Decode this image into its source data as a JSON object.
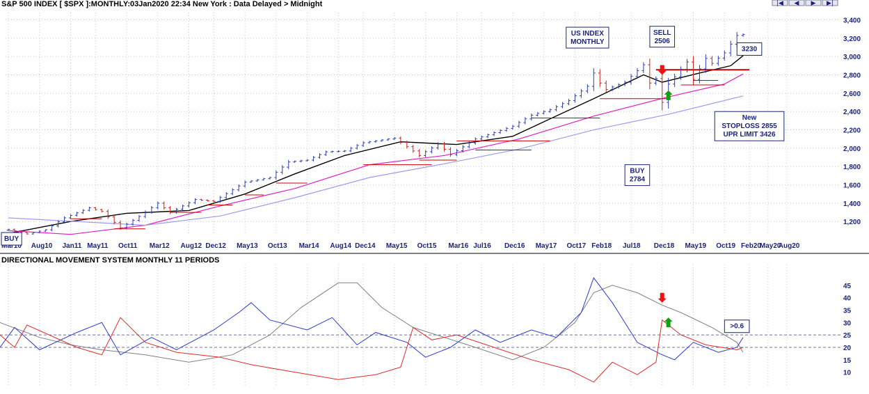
{
  "header": {
    "title": "S&P 500 INDEX [ $SPX ]:MONTHLY:03Jan2020 22:34 New York : Data Delayed > Midnight",
    "nav_buttons": [
      {
        "icon": "first-icon",
        "glyph": "|◀"
      },
      {
        "icon": "prev-icon",
        "glyph": "◀"
      },
      {
        "icon": "next-icon",
        "glyph": "▶"
      },
      {
        "icon": "last-icon",
        "glyph": "▶|"
      }
    ]
  },
  "colors": {
    "up_bar": "#2f3db4",
    "down_bar": "#d32020",
    "ma_short": "#000000",
    "ma_mid": "#e020c0",
    "ma_long": "#9a9af0",
    "level_line": "#cc0000",
    "adx": "#808080",
    "plus_di": "#2a3bd0",
    "minus_di": "#e02a2a",
    "grid": "#c8c8c8",
    "arrow_down": "#ee1111",
    "arrow_up": "#10a010"
  },
  "chart_data": [
    {
      "type": "ohlc",
      "title": "S&P 500 INDEX [ $SPX ]:MONTHLY:03Jan2020 22:34 New York : Data Delayed > Midnight",
      "y_ticks": [
        "1,200",
        "1,400",
        "1,600",
        "1,800",
        "2,000",
        "2,200",
        "2,400",
        "2,600",
        "2,800",
        "3,000",
        "3,200",
        "3,400"
      ],
      "ylim": [
        1050,
        3480
      ],
      "x_ticks": [
        "Mar10",
        "Aug10",
        "Jan11",
        "May11",
        "Oct11",
        "Mar12",
        "Aug12",
        "Dec12",
        "May13",
        "Oct13",
        "Mar14",
        "Aug14",
        "Dec14",
        "May15",
        "Oct15",
        "Mar16",
        "Jul16",
        "Dec16",
        "May17",
        "Oct17",
        "Feb18",
        "Jul18",
        "Dec18",
        "May19",
        "Oct19",
        "Feb20",
        "May20",
        "Aug20"
      ],
      "close_points": [
        [
          "2010-03",
          1115
        ],
        [
          "2010-06",
          1065
        ],
        [
          "2010-09",
          1110
        ],
        [
          "2010-12",
          1240
        ],
        [
          "2011-04",
          1350
        ],
        [
          "2011-06",
          1310
        ],
        [
          "2011-09",
          1130
        ],
        [
          "2011-12",
          1255
        ],
        [
          "2012-03",
          1400
        ],
        [
          "2012-05",
          1300
        ],
        [
          "2012-09",
          1440
        ],
        [
          "2012-12",
          1420
        ],
        [
          "2013-05",
          1630
        ],
        [
          "2013-09",
          1680
        ],
        [
          "2013-12",
          1850
        ],
        [
          "2014-03",
          1870
        ],
        [
          "2014-06",
          1960
        ],
        [
          "2014-09",
          1970
        ],
        [
          "2014-12",
          2060
        ],
        [
          "2015-05",
          2110
        ],
        [
          "2015-08",
          1970
        ],
        [
          "2015-09",
          1920
        ],
        [
          "2015-12",
          2045
        ],
        [
          "2016-02",
          1930
        ],
        [
          "2016-06",
          2100
        ],
        [
          "2016-09",
          2170
        ],
        [
          "2016-12",
          2240
        ],
        [
          "2017-03",
          2360
        ],
        [
          "2017-06",
          2420
        ],
        [
          "2017-09",
          2520
        ],
        [
          "2017-12",
          2675
        ],
        [
          "2018-01",
          2820
        ],
        [
          "2018-02",
          2710
        ],
        [
          "2018-03",
          2640
        ],
        [
          "2018-06",
          2720
        ],
        [
          "2018-09",
          2910
        ],
        [
          "2018-10",
          2710
        ],
        [
          "2018-11",
          2760
        ],
        [
          "2018-12",
          2500
        ],
        [
          "2019-01",
          2700
        ],
        [
          "2019-04",
          2940
        ],
        [
          "2019-05",
          2750
        ],
        [
          "2019-07",
          2980
        ],
        [
          "2019-08",
          2925
        ],
        [
          "2019-10",
          3040
        ],
        [
          "2019-12",
          3230
        ],
        [
          "2020-01",
          3240
        ]
      ],
      "moving_averages": [
        {
          "name": "short",
          "points": [
            [
              "2010-03",
              1070
            ],
            [
              "2011-01",
              1200
            ],
            [
              "2011-10",
              1290
            ],
            [
              "2012-08",
              1320
            ],
            [
              "2013-05",
              1500
            ],
            [
              "2014-01",
              1720
            ],
            [
              "2014-09",
              1920
            ],
            [
              "2015-06",
              2070
            ],
            [
              "2016-03",
              2040
            ],
            [
              "2016-12",
              2130
            ],
            [
              "2017-06",
              2320
            ],
            [
              "2018-01",
              2540
            ],
            [
              "2018-09",
              2800
            ],
            [
              "2018-12",
              2720
            ],
            [
              "2019-06",
              2820
            ],
            [
              "2019-11",
              2900
            ],
            [
              "2020-01",
              3010
            ]
          ]
        },
        {
          "name": "mid",
          "points": [
            [
              "2010-03",
              1100
            ],
            [
              "2011-01",
              1060
            ],
            [
              "2012-01",
              1160
            ],
            [
              "2013-01",
              1370
            ],
            [
              "2014-01",
              1560
            ],
            [
              "2015-01",
              1820
            ],
            [
              "2016-01",
              1920
            ],
            [
              "2017-01",
              2100
            ],
            [
              "2018-01",
              2350
            ],
            [
              "2019-01",
              2560
            ],
            [
              "2019-10",
              2700
            ],
            [
              "2020-01",
              2810
            ]
          ]
        },
        {
          "name": "long",
          "points": [
            [
              "2010-03",
              1240
            ],
            [
              "2012-01",
              1160
            ],
            [
              "2013-01",
              1260
            ],
            [
              "2014-01",
              1460
            ],
            [
              "2015-01",
              1680
            ],
            [
              "2016-01",
              1830
            ],
            [
              "2017-01",
              1990
            ],
            [
              "2018-01",
              2200
            ],
            [
              "2019-01",
              2370
            ],
            [
              "2020-01",
              2570
            ]
          ]
        }
      ],
      "level_lines": [
        {
          "from": "2018-11",
          "to": "2020-02",
          "y": 2855,
          "weight": 2
        },
        {
          "from": "2018-02",
          "to": "2019-01",
          "y": 2540,
          "weight": 1
        },
        {
          "from": "2019-03",
          "to": "2019-10",
          "y": 2690,
          "weight": 1
        },
        {
          "from": "2019-05",
          "to": "2019-09",
          "y": 2740,
          "weight": 1
        },
        {
          "from": "2017-03",
          "to": "2018-02",
          "y": 2330,
          "weight": 1
        },
        {
          "from": "2016-03",
          "to": "2017-06",
          "y": 2080,
          "weight": 1
        },
        {
          "from": "2016-06",
          "to": "2017-03",
          "y": 1980,
          "weight": 1
        },
        {
          "from": "2014-12",
          "to": "2015-11",
          "y": 1820,
          "weight": 1
        },
        {
          "from": "2015-09",
          "to": "2016-03",
          "y": 1870,
          "weight": 1
        },
        {
          "from": "2013-10",
          "to": "2014-03",
          "y": 1620,
          "weight": 1
        },
        {
          "from": "2013-05",
          "to": "2013-08",
          "y": 1490,
          "weight": 1
        },
        {
          "from": "2011-08",
          "to": "2012-01",
          "y": 1120,
          "weight": 1
        },
        {
          "from": "2012-05",
          "to": "2012-10",
          "y": 1300,
          "weight": 1
        },
        {
          "from": "2012-11",
          "to": "2013-03",
          "y": 1380,
          "weight": 1
        },
        {
          "from": "2011-01",
          "to": "2011-06",
          "y": 1230,
          "weight": 1
        }
      ],
      "annotations": [
        {
          "lines": [
            "US INDEX",
            "MONTHLY"
          ],
          "at": "2017-12",
          "y": 3320
        },
        {
          "lines": [
            "SELL",
            "2506"
          ],
          "at": "2018-12",
          "y": 3330
        },
        {
          "lines": [
            "BUY",
            "2784"
          ],
          "at": "2018-08",
          "y": 1820
        },
        {
          "lines": [
            "3230"
          ],
          "at": "2020-02",
          "y": 3150
        },
        {
          "lines": [
            "New",
            "STOPLOSS 2855",
            "UPR LIMIT 3426"
          ],
          "at": "2020-02",
          "y": 2400
        },
        {
          "lines": [
            "BUY"
          ],
          "at": "2010-03",
          "y": 1080
        }
      ],
      "arrows": [
        {
          "direction": "down",
          "at": "2018-12",
          "y": 2800
        },
        {
          "direction": "up",
          "at": "2019-01",
          "y": 2630
        }
      ]
    },
    {
      "type": "line",
      "title": "DIRECTIONAL MOVEMENT SYSTEM MONTHLY 11 PERIODS",
      "y_ticks": [
        "10",
        "15",
        "20",
        "25",
        "30",
        "35",
        "40",
        "45"
      ],
      "ylim": [
        4,
        50
      ],
      "reference_lines": [
        20,
        25
      ],
      "series": [
        {
          "name": "ADX",
          "points": [
            [
              "2010-01",
              30
            ],
            [
              "2010-08",
              24
            ],
            [
              "2011-01",
              21
            ],
            [
              "2011-06",
              19
            ],
            [
              "2012-01",
              17
            ],
            [
              "2012-08",
              14
            ],
            [
              "2013-03",
              17
            ],
            [
              "2013-09",
              25
            ],
            [
              "2014-02",
              36
            ],
            [
              "2014-08",
              46
            ],
            [
              "2014-11",
              46
            ],
            [
              "2015-03",
              36
            ],
            [
              "2015-08",
              28
            ],
            [
              "2016-01",
              24
            ],
            [
              "2016-06",
              20
            ],
            [
              "2016-12",
              15
            ],
            [
              "2017-05",
              20
            ],
            [
              "2017-10",
              30
            ],
            [
              "2018-01",
              42
            ],
            [
              "2018-04",
              45
            ],
            [
              "2018-08",
              42
            ],
            [
              "2018-12",
              37
            ],
            [
              "2019-03",
              34
            ],
            [
              "2019-08",
              28
            ],
            [
              "2019-12",
              22
            ],
            [
              "2020-01",
              18
            ]
          ]
        },
        {
          "name": "+DI",
          "points": [
            [
              "2010-01",
              20
            ],
            [
              "2010-04",
              28
            ],
            [
              "2010-08",
              19
            ],
            [
              "2011-02",
              26
            ],
            [
              "2011-06",
              30
            ],
            [
              "2011-09",
              17
            ],
            [
              "2012-02",
              24
            ],
            [
              "2012-06",
              19
            ],
            [
              "2012-12",
              27
            ],
            [
              "2013-04",
              34
            ],
            [
              "2013-06",
              38
            ],
            [
              "2013-09",
              31
            ],
            [
              "2014-03",
              27
            ],
            [
              "2014-07",
              32
            ],
            [
              "2014-11",
              21
            ],
            [
              "2015-02",
              26
            ],
            [
              "2015-07",
              22
            ],
            [
              "2015-10",
              16
            ],
            [
              "2016-02",
              20
            ],
            [
              "2016-06",
              27
            ],
            [
              "2016-10",
              22
            ],
            [
              "2017-03",
              27
            ],
            [
              "2017-07",
              24
            ],
            [
              "2017-11",
              34
            ],
            [
              "2018-01",
              48
            ],
            [
              "2018-04",
              38
            ],
            [
              "2018-08",
              22
            ],
            [
              "2018-12",
              17
            ],
            [
              "2019-02",
              15
            ],
            [
              "2019-05",
              22
            ],
            [
              "2019-09",
              18
            ],
            [
              "2019-12",
              20
            ],
            [
              "2020-01",
              24
            ]
          ]
        },
        {
          "name": "-DI",
          "points": [
            [
              "2010-01",
              25
            ],
            [
              "2010-04",
              20
            ],
            [
              "2010-06",
              29
            ],
            [
              "2011-02",
              20
            ],
            [
              "2011-06",
              17
            ],
            [
              "2011-09",
              32
            ],
            [
              "2012-01",
              22
            ],
            [
              "2012-06",
              18
            ],
            [
              "2013-01",
              16
            ],
            [
              "2013-06",
              13
            ],
            [
              "2014-01",
              10
            ],
            [
              "2014-08",
              7
            ],
            [
              "2015-02",
              9
            ],
            [
              "2015-06",
              12
            ],
            [
              "2015-08",
              28
            ],
            [
              "2015-11",
              23
            ],
            [
              "2016-03",
              25
            ],
            [
              "2016-09",
              20
            ],
            [
              "2017-03",
              15
            ],
            [
              "2017-09",
              11
            ],
            [
              "2018-01",
              6
            ],
            [
              "2018-04",
              14
            ],
            [
              "2018-08",
              9
            ],
            [
              "2018-11",
              14
            ],
            [
              "2018-12",
              31
            ],
            [
              "2019-03",
              25
            ],
            [
              "2019-07",
              21
            ],
            [
              "2019-12",
              19
            ],
            [
              "2020-01",
              20
            ]
          ]
        }
      ],
      "annotations": [
        {
          "lines": [
            ">0.6"
          ],
          "at": "2019-12",
          "y": 31
        }
      ],
      "arrows": [
        {
          "direction": "down",
          "at": "2018-12",
          "y": 38
        },
        {
          "direction": "up",
          "at": "2019-01",
          "y": 32
        }
      ]
    }
  ]
}
